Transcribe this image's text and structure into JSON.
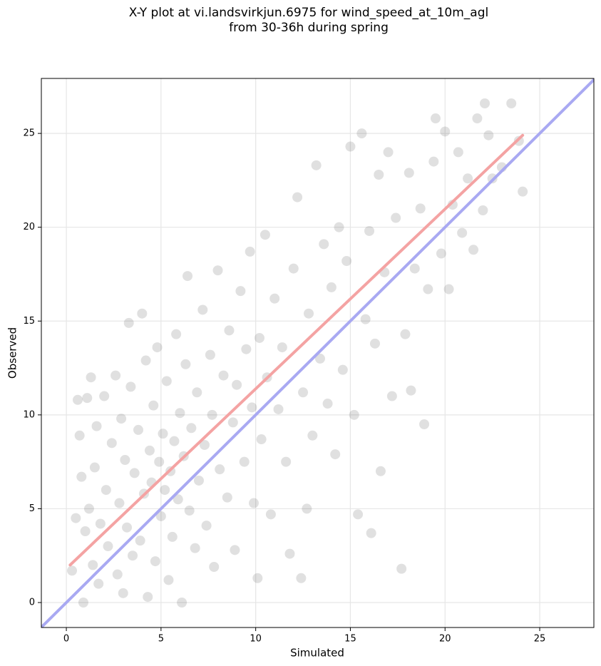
{
  "chart_data": {
    "type": "scatter",
    "title": "X-Y plot at vi.landsvirkjun.6975 for wind_speed_at_10m_agl\nfrom 30-36h during spring",
    "x_label": "Simulated",
    "y_label": "Observed",
    "xlim": [
      -1.32,
      27.86
    ],
    "ylim": [
      -1.33,
      27.93
    ],
    "xticks": [
      0,
      5,
      10,
      15,
      20,
      25
    ],
    "yticks": [
      0,
      5,
      10,
      15,
      20,
      25
    ],
    "grid": true,
    "series": [
      {
        "color": "#555555",
        "alpha": 0.18,
        "x": [
          0.3,
          0.5,
          0.6,
          0.7,
          0.8,
          0.9,
          1.0,
          1.1,
          1.2,
          1.3,
          1.4,
          1.5,
          1.6,
          1.7,
          1.8,
          2.0,
          2.1,
          2.2,
          2.4,
          2.6,
          2.7,
          2.8,
          2.9,
          3.0,
          3.1,
          3.2,
          3.3,
          3.4,
          3.5,
          3.6,
          3.8,
          3.9,
          4.0,
          4.1,
          4.2,
          4.3,
          4.4,
          4.5,
          4.6,
          4.7,
          4.8,
          4.9,
          5.0,
          5.1,
          5.2,
          5.3,
          5.4,
          5.5,
          5.6,
          5.7,
          5.8,
          5.9,
          6.0,
          6.1,
          6.2,
          6.3,
          6.4,
          6.5,
          6.6,
          6.8,
          6.9,
          7.0,
          7.2,
          7.3,
          7.4,
          7.6,
          7.7,
          7.8,
          8.0,
          8.1,
          8.3,
          8.5,
          8.6,
          8.8,
          8.9,
          9.0,
          9.2,
          9.4,
          9.5,
          9.7,
          9.8,
          9.9,
          10.1,
          10.2,
          10.3,
          10.5,
          10.6,
          10.8,
          11.0,
          11.2,
          11.4,
          11.6,
          11.8,
          12.0,
          12.2,
          12.4,
          12.5,
          12.7,
          12.8,
          13.0,
          13.2,
          13.4,
          13.6,
          13.8,
          14.0,
          14.2,
          14.4,
          14.6,
          14.8,
          15.0,
          15.2,
          15.4,
          15.6,
          15.8,
          16.0,
          16.1,
          16.3,
          16.5,
          16.6,
          16.8,
          17.0,
          17.2,
          17.4,
          17.7,
          17.9,
          18.1,
          18.2,
          18.4,
          18.7,
          18.9,
          19.1,
          19.4,
          19.5,
          19.8,
          20.0,
          20.2,
          20.4,
          20.7,
          20.9,
          21.2,
          21.5,
          21.7,
          22.0,
          22.1,
          22.3,
          22.5,
          23.0,
          23.5,
          23.9,
          24.1
        ],
        "values": [
          1.7,
          4.5,
          10.8,
          8.9,
          6.7,
          0,
          3.8,
          10.9,
          5.0,
          12.0,
          2.0,
          7.2,
          9.4,
          1.0,
          4.2,
          11.0,
          6.0,
          3.0,
          8.5,
          12.1,
          1.5,
          5.3,
          9.8,
          0.5,
          7.6,
          4.0,
          14.9,
          11.5,
          2.5,
          6.9,
          9.2,
          3.3,
          15.4,
          5.8,
          12.9,
          0.3,
          8.1,
          6.4,
          10.5,
          2.2,
          13.6,
          7.5,
          4.6,
          9.0,
          6.0,
          11.8,
          1.2,
          7.0,
          3.5,
          8.6,
          14.3,
          5.5,
          10.1,
          0,
          7.8,
          12.7,
          17.4,
          4.9,
          9.3,
          2.9,
          11.2,
          6.5,
          15.6,
          8.4,
          4.1,
          13.2,
          10.0,
          1.9,
          17.7,
          7.1,
          12.1,
          5.6,
          14.5,
          9.6,
          2.8,
          11.6,
          16.6,
          7.5,
          13.5,
          18.7,
          10.4,
          5.3,
          1.3,
          14.1,
          8.7,
          19.6,
          12.0,
          4.7,
          16.2,
          10.3,
          13.6,
          7.5,
          2.6,
          17.8,
          21.6,
          1.3,
          11.2,
          5.0,
          15.4,
          8.9,
          23.3,
          13.0,
          19.1,
          10.6,
          16.8,
          7.9,
          20.0,
          12.4,
          18.2,
          24.3,
          10.0,
          4.7,
          25.0,
          15.1,
          19.8,
          3.7,
          13.8,
          22.8,
          7.0,
          17.6,
          24.0,
          11.0,
          20.5,
          1.8,
          14.3,
          22.9,
          11.3,
          17.8,
          21.0,
          9.5,
          16.7,
          23.5,
          25.8,
          18.6,
          25.1,
          16.7,
          21.2,
          24.0,
          19.7,
          22.6,
          18.8,
          25.8,
          20.9,
          26.6,
          24.9,
          22.6,
          23.2,
          26.6,
          24.6,
          21.9
        ]
      }
    ],
    "lines": [
      {
        "color": "#f4a3a3",
        "x": [
          0.2,
          24.1
        ],
        "values": [
          2.0,
          24.9
        ]
      },
      {
        "color": "#a9a9f2",
        "x": [
          -1.32,
          27.86
        ],
        "values": [
          -1.32,
          27.86
        ]
      }
    ]
  }
}
